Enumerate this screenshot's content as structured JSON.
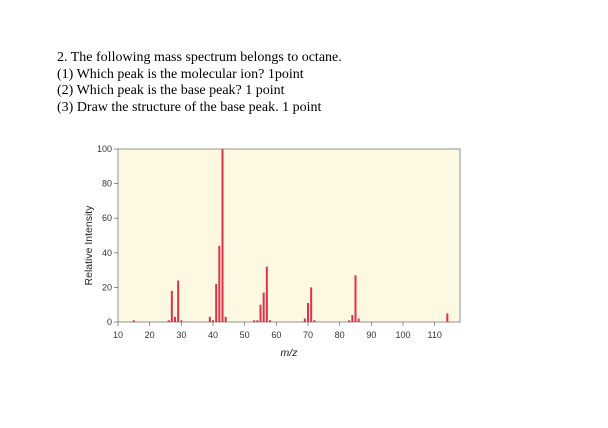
{
  "question": {
    "line1": "2. The following mass spectrum belongs to octane.",
    "line2": "(1) Which peak is the molecular ion? 1point",
    "line3": "(2) Which peak is the base peak? 1 point",
    "line4": "(3) Draw the structure of the base peak. 1 point"
  },
  "colors": {
    "plot_bg": "#fdf8e1",
    "bar": "#e0304a",
    "axis": "#777777"
  },
  "chart_data": {
    "type": "bar",
    "xlabel": "m/z",
    "ylabel": "Relative Intensity",
    "xlim": [
      10,
      118
    ],
    "ylim": [
      0,
      100
    ],
    "xticks": [
      10,
      20,
      30,
      40,
      50,
      60,
      70,
      80,
      90,
      100,
      110
    ],
    "yticks": [
      0,
      20,
      40,
      60,
      80,
      100
    ],
    "peaks": [
      {
        "mz": 15,
        "intensity": 1
      },
      {
        "mz": 26,
        "intensity": 1
      },
      {
        "mz": 27,
        "intensity": 18
      },
      {
        "mz": 28,
        "intensity": 3
      },
      {
        "mz": 29,
        "intensity": 24
      },
      {
        "mz": 30,
        "intensity": 1
      },
      {
        "mz": 39,
        "intensity": 3
      },
      {
        "mz": 40,
        "intensity": 1
      },
      {
        "mz": 41,
        "intensity": 22
      },
      {
        "mz": 42,
        "intensity": 44
      },
      {
        "mz": 43,
        "intensity": 100
      },
      {
        "mz": 44,
        "intensity": 3
      },
      {
        "mz": 53,
        "intensity": 1
      },
      {
        "mz": 54,
        "intensity": 1
      },
      {
        "mz": 55,
        "intensity": 10
      },
      {
        "mz": 56,
        "intensity": 17
      },
      {
        "mz": 57,
        "intensity": 32
      },
      {
        "mz": 58,
        "intensity": 1
      },
      {
        "mz": 69,
        "intensity": 2
      },
      {
        "mz": 70,
        "intensity": 11
      },
      {
        "mz": 71,
        "intensity": 20
      },
      {
        "mz": 72,
        "intensity": 1
      },
      {
        "mz": 83,
        "intensity": 1
      },
      {
        "mz": 84,
        "intensity": 4
      },
      {
        "mz": 85,
        "intensity": 27
      },
      {
        "mz": 86,
        "intensity": 2
      },
      {
        "mz": 114,
        "intensity": 5
      }
    ]
  }
}
